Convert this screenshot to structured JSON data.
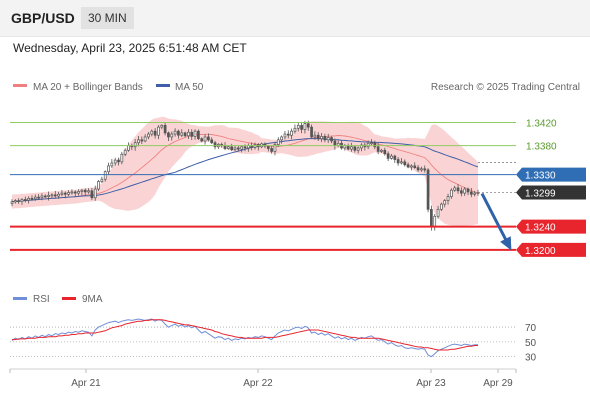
{
  "header": {
    "symbol": "GBP/USD",
    "timeframe": "30 MIN",
    "datetime": "Wednesday, April 23, 2025 6:51:48 AM CET"
  },
  "legend": {
    "ma20_bollinger": "MA 20 + Bollinger Bands",
    "ma50": "MA 50",
    "copyright": "Research © 2025 Trading Central"
  },
  "rsi_legend": {
    "rsi": "RSI",
    "ma9": "9MA"
  },
  "colors": {
    "candle": "#555555",
    "bollinger_band": "#f8c6c6",
    "ma20": "#f08080",
    "ma50": "#3f5fa8",
    "resistance_green": "#8fcc60",
    "pivot_blue": "#2f6db5",
    "support_red": "#e8242c",
    "last_price": "#333333",
    "arrow": "#2f62a8",
    "rsi": "#6f8fd8",
    "rsi_ma": "#e8242c"
  },
  "chart_data": [
    {
      "type": "candlestick",
      "title": "GBP/USD",
      "timeframe": "30 MIN",
      "x_ticks": [
        "Apr 21",
        "Apr 22",
        "Apr 23",
        "Apr 29"
      ],
      "ylim": [
        1.316,
        1.3445
      ],
      "levels": [
        {
          "label": "1.3420",
          "value": 1.342,
          "kind": "resistance",
          "color": "#8fcc60"
        },
        {
          "label": "1.3380",
          "value": 1.338,
          "kind": "resistance",
          "color": "#8fcc60"
        },
        {
          "label": "1.3330",
          "value": 1.333,
          "kind": "pivot",
          "color": "#2f6db5"
        },
        {
          "label": "1.3299",
          "value": 1.3299,
          "kind": "last",
          "color": "#333333"
        },
        {
          "label": "1.3240",
          "value": 1.324,
          "kind": "support",
          "color": "#e8242c"
        },
        {
          "label": "1.3200",
          "value": 1.32,
          "kind": "support",
          "color": "#e8242c"
        }
      ],
      "series": [
        {
          "name": "MA 20 + Bollinger Bands",
          "kind": "ma20_bands"
        },
        {
          "name": "MA 50",
          "kind": "ma50"
        }
      ],
      "close": [
        1.3283,
        1.3285,
        1.3284,
        1.3287,
        1.3286,
        1.3289,
        1.3288,
        1.3291,
        1.329,
        1.3293,
        1.3292,
        1.3294,
        1.3295,
        1.3293,
        1.3296,
        1.3298,
        1.3296,
        1.3299,
        1.33,
        1.3298,
        1.3301,
        1.3303,
        1.33,
        1.3302,
        1.329,
        1.3305,
        1.3318,
        1.3322,
        1.3335,
        1.3345,
        1.335,
        1.3355,
        1.3352,
        1.3365,
        1.3372,
        1.338,
        1.3378,
        1.3385,
        1.339,
        1.3388,
        1.3395,
        1.34,
        1.3405,
        1.3398,
        1.3412,
        1.3415,
        1.3402,
        1.3395,
        1.34,
        1.3405,
        1.3398,
        1.3402,
        1.3397,
        1.3403,
        1.3396,
        1.3405,
        1.3392,
        1.3388,
        1.3395,
        1.339,
        1.3385,
        1.3378,
        1.3382,
        1.338,
        1.3375,
        1.3378,
        1.3373,
        1.3376,
        1.3374,
        1.3378,
        1.3376,
        1.338,
        1.3377,
        1.3382,
        1.3378,
        1.3383,
        1.3379,
        1.3375,
        1.337,
        1.3382,
        1.339,
        1.3395,
        1.34,
        1.3398,
        1.3405,
        1.341,
        1.3415,
        1.3408,
        1.3418,
        1.3412,
        1.3395,
        1.3398,
        1.3392,
        1.3396,
        1.339,
        1.3394,
        1.3388,
        1.338,
        1.3384,
        1.3376,
        1.338,
        1.3374,
        1.3378,
        1.3372,
        1.3376,
        1.3381,
        1.3378,
        1.3384,
        1.3385,
        1.3378,
        1.337,
        1.3372,
        1.3366,
        1.3358,
        1.3362,
        1.3356,
        1.335,
        1.3352,
        1.3347,
        1.3343,
        1.3345,
        1.3342,
        1.3338,
        1.334,
        1.3338,
        1.327,
        1.324,
        1.3258,
        1.327,
        1.3279,
        1.3285,
        1.3292,
        1.3303,
        1.3307,
        1.3302,
        1.3298,
        1.3305,
        1.33,
        1.3296,
        1.3298,
        1.3299
      ],
      "projection": {
        "from": 1.3299,
        "to": 1.32
      }
    },
    {
      "type": "line",
      "title": "RSI",
      "ylim": [
        20,
        85
      ],
      "y_ticks": [
        70,
        50,
        30
      ],
      "series": [
        {
          "name": "RSI",
          "values": [
            52,
            55,
            53,
            56,
            54,
            57,
            55,
            58,
            56,
            59,
            57,
            60,
            58,
            61,
            60,
            62,
            61,
            63,
            62,
            64,
            63,
            65,
            64,
            63,
            58,
            66,
            70,
            72,
            74,
            76,
            77,
            78,
            76,
            78,
            79,
            80,
            79,
            80,
            81,
            80,
            79,
            80,
            81,
            78,
            80,
            79,
            74,
            70,
            72,
            74,
            71,
            73,
            70,
            72,
            69,
            71,
            66,
            62,
            64,
            61,
            58,
            55,
            57,
            56,
            53,
            55,
            52,
            54,
            53,
            55,
            54,
            56,
            55,
            57,
            56,
            58,
            57,
            55,
            53,
            58,
            62,
            64,
            66,
            65,
            67,
            69,
            70,
            68,
            71,
            69,
            62,
            63,
            60,
            62,
            59,
            61,
            58,
            55,
            57,
            54,
            56,
            53,
            55,
            52,
            54,
            56,
            55,
            57,
            58,
            55,
            52,
            53,
            50,
            47,
            49,
            46,
            44,
            45,
            42,
            41,
            42,
            41,
            40,
            41,
            40,
            32,
            30,
            34,
            38,
            40,
            42,
            44,
            46,
            47,
            46,
            45,
            47,
            46,
            45,
            46,
            46
          ]
        },
        {
          "name": "9MA",
          "values": [
            53,
            53,
            54,
            54,
            54,
            55,
            55,
            55,
            56,
            56,
            56,
            57,
            57,
            57,
            58,
            58,
            59,
            59,
            60,
            60,
            61,
            61,
            62,
            62,
            62,
            62,
            63,
            64,
            65,
            67,
            69,
            70,
            71,
            72,
            74,
            75,
            76,
            77,
            78,
            78,
            79,
            79,
            80,
            80,
            80,
            80,
            79,
            78,
            77,
            76,
            75,
            74,
            73,
            73,
            72,
            71,
            70,
            69,
            68,
            67,
            66,
            64,
            63,
            61,
            60,
            59,
            58,
            57,
            56,
            56,
            55,
            55,
            55,
            55,
            55,
            55,
            56,
            56,
            56,
            56,
            57,
            58,
            59,
            60,
            61,
            62,
            63,
            64,
            65,
            66,
            66,
            66,
            66,
            65,
            64,
            63,
            62,
            61,
            60,
            59,
            58,
            57,
            56,
            56,
            55,
            55,
            55,
            55,
            55,
            55,
            55,
            54,
            53,
            52,
            51,
            50,
            49,
            48,
            47,
            46,
            45,
            44,
            43,
            43,
            42,
            42,
            41,
            40,
            39,
            39,
            39,
            39,
            40,
            40,
            41,
            42,
            43,
            44,
            44,
            45,
            45
          ]
        }
      ]
    }
  ]
}
